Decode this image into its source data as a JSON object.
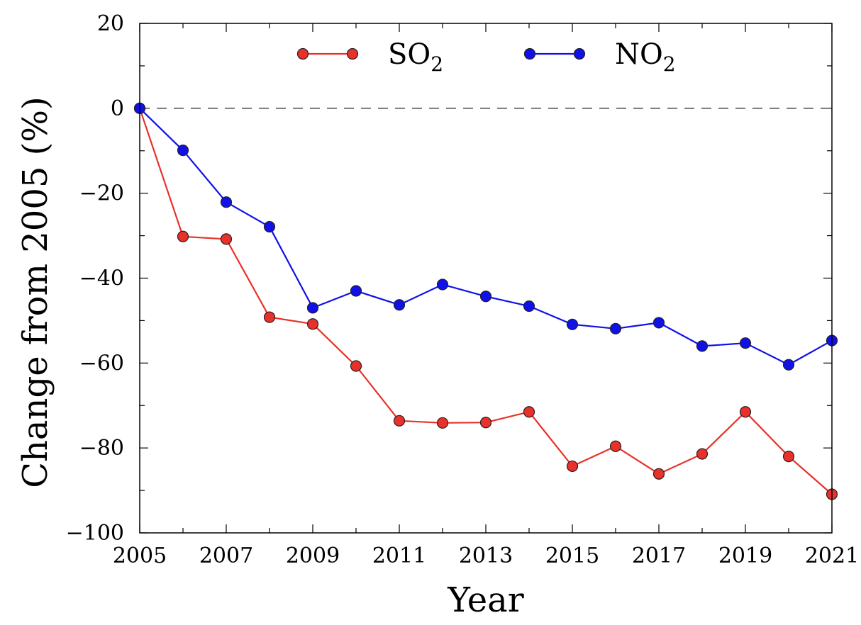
{
  "chart_data": {
    "type": "line",
    "title": "",
    "xlabel": "Year",
    "ylabel": "Change from 2005 (%)",
    "xlim": [
      2005,
      2021
    ],
    "ylim": [
      -100,
      20
    ],
    "x_ticks": [
      "2005",
      "2007",
      "2009",
      "2011",
      "2013",
      "2015",
      "2017",
      "2019",
      "2021"
    ],
    "y_ticks": [
      "20",
      "0",
      "−20",
      "−40",
      "−60",
      "−80",
      "−100"
    ],
    "reference_line": {
      "y": 0,
      "style": "dashed"
    },
    "legend_placement": "top-center",
    "x": [
      2005,
      2006,
      2007,
      2008,
      2009,
      2010,
      2011,
      2012,
      2013,
      2014,
      2015,
      2016,
      2017,
      2018,
      2019,
      2020,
      2021
    ],
    "series": [
      {
        "name": "SO",
        "name_subscript": "2",
        "color": "#e8312a",
        "values": [
          0,
          -30.2,
          -30.8,
          -49.2,
          -50.8,
          -60.7,
          -73.6,
          -74.1,
          -74.0,
          -71.5,
          -84.3,
          -79.6,
          -86.1,
          -81.4,
          -71.5,
          -82.0,
          -90.9
        ]
      },
      {
        "name": "NO",
        "name_subscript": "2",
        "color": "#1010e8",
        "values": [
          0,
          -9.9,
          -22.1,
          -27.9,
          -47.0,
          -43.0,
          -46.3,
          -41.5,
          -44.3,
          -46.6,
          -50.9,
          -51.9,
          -50.5,
          -56.0,
          -55.3,
          -60.4,
          -54.7
        ]
      }
    ]
  }
}
